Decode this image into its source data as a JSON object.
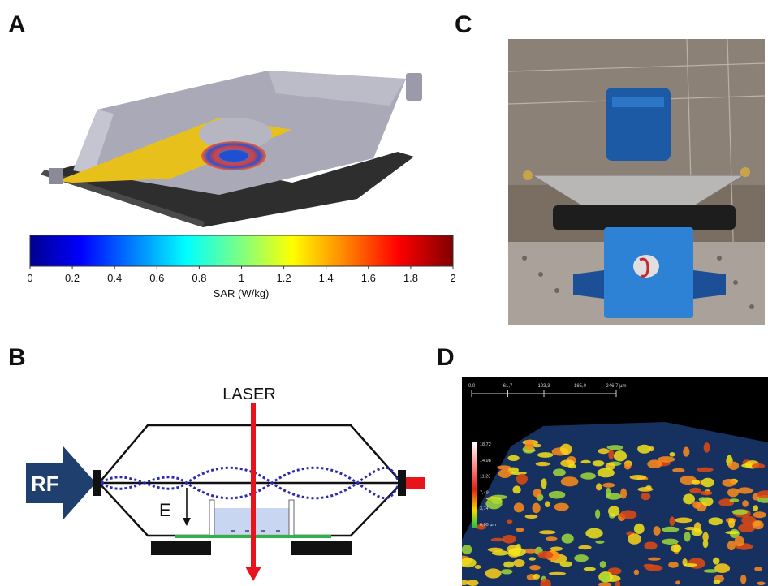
{
  "panels": {
    "a": "A",
    "b": "B",
    "c": "C",
    "d": "D"
  },
  "colorbar": {
    "ticks": [
      "0",
      "0.2",
      "0.4",
      "0.6",
      "0.8",
      "1",
      "1.2",
      "1.4",
      "1.6",
      "1.8",
      "2"
    ],
    "label": "SAR (W/kg)",
    "colors": [
      "#00008f",
      "#0000ff",
      "#0080ff",
      "#00ffff",
      "#80ff80",
      "#ffff00",
      "#ff8000",
      "#ff0000",
      "#800000"
    ]
  },
  "schematic": {
    "laser_label": "LASER",
    "rf_label": "RF",
    "e_label": "E",
    "colors": {
      "laser": "#e8141c",
      "rf_arrow": "#1f3f6e",
      "wave": "#2b2bb0",
      "substrate": "#2db34a",
      "medium": "#c9d6f2"
    }
  },
  "confocal": {
    "scale_ticks": [
      "0,0",
      "61,7",
      "123,3",
      "185,0",
      "246,7 µm"
    ],
    "legend_ticks": [
      "18,72",
      "14,98",
      "11,23",
      "7,49",
      "3,74",
      "0,00 µm"
    ]
  }
}
